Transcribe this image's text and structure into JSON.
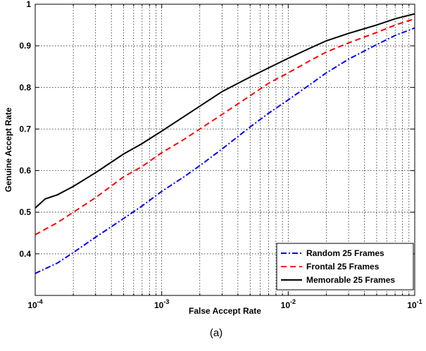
{
  "chart_data": {
    "type": "line",
    "xlabel": "False Accept Rate",
    "ylabel": "Genuine Accept Rate",
    "caption": "(a)",
    "x_scale": "log",
    "xlim": [
      0.0001,
      0.1
    ],
    "ylim": [
      0.3,
      1.0
    ],
    "grid": true,
    "legend_position": "bottom-right",
    "x_ticks": [
      {
        "value": 0.0001,
        "base": "10",
        "exp": "-4"
      },
      {
        "value": 0.001,
        "base": "10",
        "exp": "-3"
      },
      {
        "value": 0.01,
        "base": "10",
        "exp": "-2"
      },
      {
        "value": 0.1,
        "base": "10",
        "exp": "-1"
      }
    ],
    "y_ticks": [
      {
        "value": 0.4,
        "label": "0.4"
      },
      {
        "value": 0.5,
        "label": "0.5"
      },
      {
        "value": 0.6,
        "label": "0.6"
      },
      {
        "value": 0.7,
        "label": "0.7"
      },
      {
        "value": 0.8,
        "label": "0.8"
      },
      {
        "value": 0.9,
        "label": "0.9"
      },
      {
        "value": 1.0,
        "label": "1"
      }
    ],
    "series": [
      {
        "name": "Random 25 Frames",
        "color": "#0000ff",
        "style": "dashdot",
        "points": [
          [
            0.0001,
            0.353
          ],
          [
            0.00015,
            0.378
          ],
          [
            0.0002,
            0.403
          ],
          [
            0.0003,
            0.44
          ],
          [
            0.0005,
            0.485
          ],
          [
            0.0007,
            0.515
          ],
          [
            0.001,
            0.55
          ],
          [
            0.0015,
            0.585
          ],
          [
            0.002,
            0.612
          ],
          [
            0.003,
            0.652
          ],
          [
            0.005,
            0.705
          ],
          [
            0.007,
            0.738
          ],
          [
            0.01,
            0.77
          ],
          [
            0.015,
            0.808
          ],
          [
            0.02,
            0.835
          ],
          [
            0.03,
            0.868
          ],
          [
            0.05,
            0.903
          ],
          [
            0.07,
            0.925
          ],
          [
            0.1,
            0.943
          ]
        ]
      },
      {
        "name": "Frontal 25 Frames",
        "color": "#ff0000",
        "style": "dashed",
        "points": [
          [
            0.0001,
            0.446
          ],
          [
            0.00015,
            0.475
          ],
          [
            0.0002,
            0.5
          ],
          [
            0.0003,
            0.535
          ],
          [
            0.0005,
            0.585
          ],
          [
            0.0007,
            0.61
          ],
          [
            0.001,
            0.643
          ],
          [
            0.0015,
            0.675
          ],
          [
            0.002,
            0.7
          ],
          [
            0.003,
            0.735
          ],
          [
            0.005,
            0.78
          ],
          [
            0.007,
            0.81
          ],
          [
            0.01,
            0.835
          ],
          [
            0.015,
            0.865
          ],
          [
            0.02,
            0.885
          ],
          [
            0.03,
            0.907
          ],
          [
            0.05,
            0.932
          ],
          [
            0.07,
            0.95
          ],
          [
            0.1,
            0.965
          ]
        ]
      },
      {
        "name": "Memorable 25 Frames",
        "color": "#000000",
        "style": "solid",
        "points": [
          [
            0.0001,
            0.51
          ],
          [
            0.00012,
            0.532
          ],
          [
            0.00015,
            0.542
          ],
          [
            0.0002,
            0.562
          ],
          [
            0.0003,
            0.595
          ],
          [
            0.0005,
            0.64
          ],
          [
            0.0007,
            0.665
          ],
          [
            0.001,
            0.695
          ],
          [
            0.0015,
            0.73
          ],
          [
            0.002,
            0.755
          ],
          [
            0.003,
            0.79
          ],
          [
            0.005,
            0.825
          ],
          [
            0.007,
            0.847
          ],
          [
            0.01,
            0.87
          ],
          [
            0.015,
            0.895
          ],
          [
            0.02,
            0.912
          ],
          [
            0.03,
            0.93
          ],
          [
            0.05,
            0.95
          ],
          [
            0.07,
            0.965
          ],
          [
            0.1,
            0.977
          ]
        ]
      }
    ]
  }
}
